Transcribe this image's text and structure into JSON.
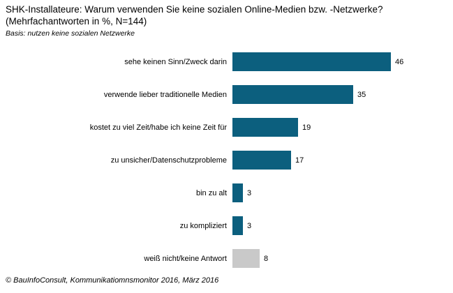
{
  "header": {
    "title_line1": "SHK-Installateure: Warum verwenden Sie keine sozialen Online-Medien bzw. -Netzwerke?",
    "title_line2": "(Mehrfachantworten in %, N=144)",
    "basis": "Basis: nutzen keine sozialen Netzwerke"
  },
  "footer": {
    "text": "© BauInfoConsult, Kommunikatiomnsmonitor 2016, März 2016"
  },
  "colors": {
    "bar_primary": "#0c5f7e",
    "bar_neutral": "#c9c9c9",
    "text": "#000000",
    "background": "#ffffff"
  },
  "chart_data": {
    "type": "bar",
    "orientation": "horizontal",
    "title": "SHK-Installateure: Warum verwenden Sie keine sozialen Online-Medien bzw. -Netzwerke? (Mehrfachantworten in %, N=144)",
    "subtitle": "Basis: nutzen keine sozialen Netzwerke",
    "categories": [
      "sehe keinen Sinn/Zweck darin",
      "verwende lieber traditionelle Medien",
      "kostet zu viel Zeit/habe ich keine Zeit für",
      "zu unsicher/Datenschutzprobleme",
      "bin zu alt",
      "zu kompliziert",
      "weiß nicht/keine Antwort"
    ],
    "values": [
      46,
      35,
      19,
      17,
      3,
      3,
      8
    ],
    "bar_colors": [
      "#0c5f7e",
      "#0c5f7e",
      "#0c5f7e",
      "#0c5f7e",
      "#0c5f7e",
      "#0c5f7e",
      "#c9c9c9"
    ],
    "value_labels_shown": true,
    "xlim": [
      0,
      50
    ],
    "grid": false,
    "legend": false,
    "axis_shown": false
  }
}
